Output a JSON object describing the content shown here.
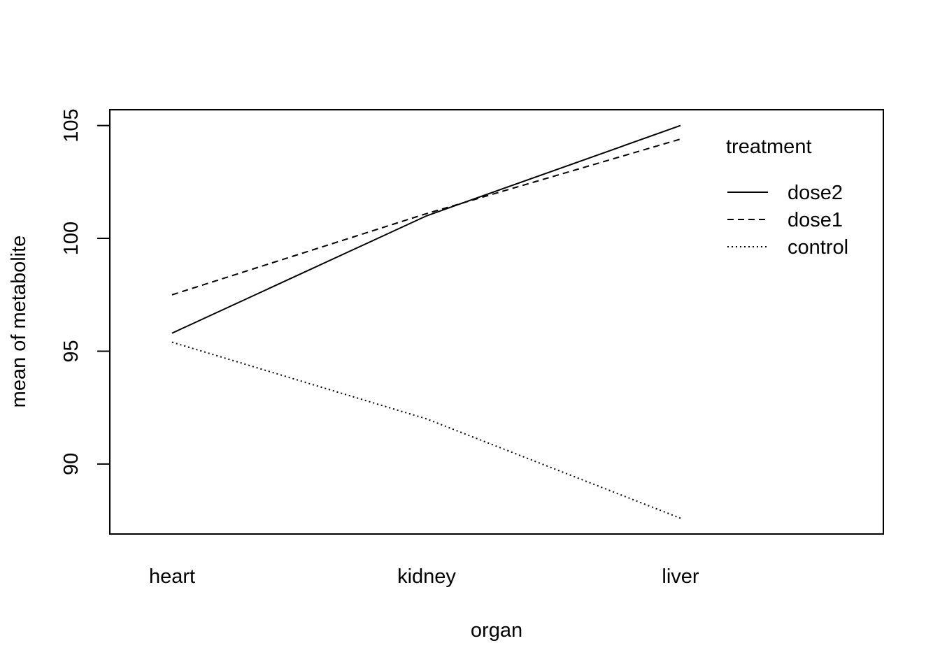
{
  "chart_data": {
    "type": "line",
    "title": "",
    "xlabel": "organ",
    "ylabel": "mean of  metabolite",
    "categories": [
      "heart",
      "kidney",
      "liver"
    ],
    "ylim": [
      86.9,
      105.7
    ],
    "yticks": [
      90,
      95,
      100,
      105
    ],
    "grid": false,
    "legend": {
      "title": "treatment",
      "position": "top-right",
      "entries": [
        "dose2",
        "dose1",
        "control"
      ]
    },
    "series": [
      {
        "name": "dose2",
        "dash": "solid",
        "values": [
          95.8,
          101.0,
          105.0
        ]
      },
      {
        "name": "dose1",
        "dash": "dashed",
        "values": [
          97.5,
          101.1,
          104.4
        ]
      },
      {
        "name": "control",
        "dash": "dotted",
        "values": [
          95.4,
          92.0,
          87.6
        ]
      }
    ]
  }
}
